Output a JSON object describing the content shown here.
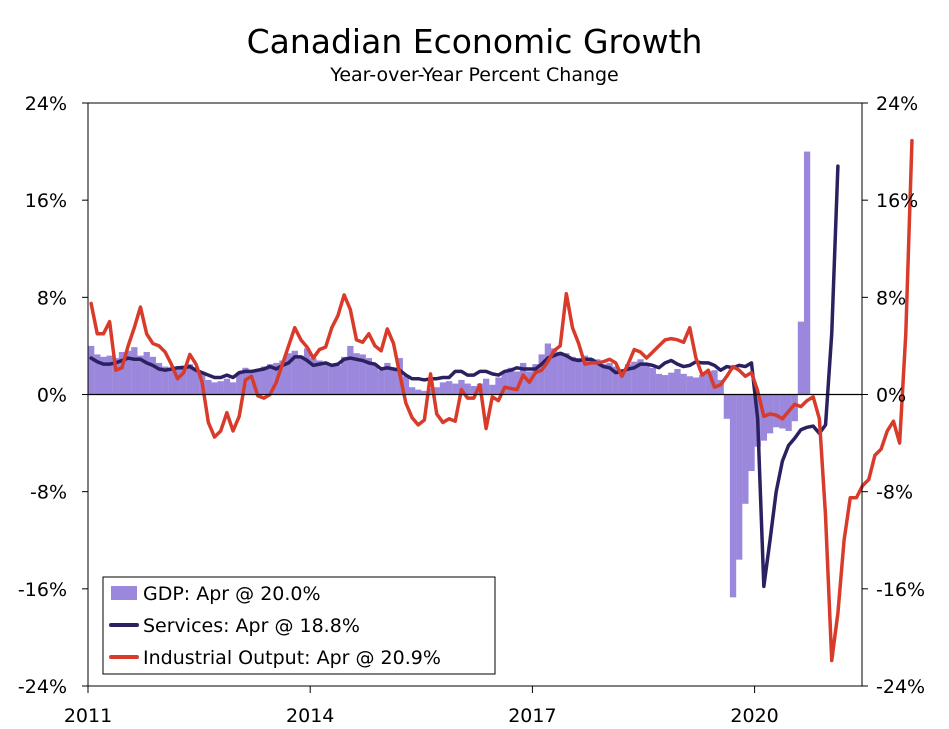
{
  "chart_data": {
    "type": "bar+line",
    "title": "Canadian Economic Growth",
    "subtitle": "Year-over-Year Percent Change",
    "ylim": [
      -24,
      24
    ],
    "y_ticks": [
      24,
      16,
      8,
      0,
      -8,
      -16,
      -24
    ],
    "y_tick_labels": [
      "24%",
      "16%",
      "8%",
      "0%",
      "-8%",
      "-16%",
      "-24%"
    ],
    "x_range": [
      2011.0,
      2021.45
    ],
    "x_ticks": [
      2011,
      2014,
      2017,
      2020
    ],
    "x_tick_labels": [
      "2011",
      "2014",
      "2017",
      "2020"
    ],
    "x_start": 2011.0,
    "x_step": 0.08333,
    "series": [
      {
        "name": "GDP",
        "kind": "bar",
        "color": "#9b87dc",
        "values": [
          4.0,
          3.3,
          3.1,
          3.2,
          3.0,
          3.5,
          3.6,
          3.9,
          3.2,
          3.5,
          3.1,
          2.6,
          2.3,
          2.1,
          2.3,
          2.4,
          2.5,
          2.2,
          1.8,
          1.2,
          1.0,
          1.1,
          1.3,
          1.0,
          1.8,
          2.2,
          2.0,
          2.1,
          2.3,
          2.5,
          2.6,
          2.8,
          3.4,
          3.6,
          3.2,
          3.8,
          3.0,
          2.8,
          2.6,
          2.5,
          2.4,
          3.1,
          4.0,
          3.4,
          3.3,
          3.0,
          2.4,
          2.0,
          2.6,
          2.2,
          3.0,
          1.5,
          0.6,
          0.4,
          0.3,
          0.5,
          0.6,
          1.0,
          1.1,
          0.9,
          1.2,
          0.9,
          0.7,
          0.9,
          1.3,
          0.8,
          1.4,
          1.9,
          2.2,
          1.9,
          2.6,
          1.9,
          2.5,
          3.3,
          4.2,
          3.8,
          3.5,
          3.4,
          3.1,
          3.0,
          3.2,
          3.0,
          2.9,
          2.5,
          2.6,
          2.3,
          2.1,
          2.5,
          2.7,
          2.9,
          2.5,
          2.2,
          1.7,
          1.6,
          1.8,
          2.1,
          1.7,
          1.5,
          1.4,
          1.6,
          1.9,
          2.0,
          1.2,
          -2.0,
          -16.7,
          -13.6,
          -9.0,
          -6.3,
          -4.3,
          -3.8,
          -3.2,
          -2.7,
          -2.8,
          -3.0,
          -2.2,
          6.0,
          20.0
        ]
      },
      {
        "name": "Services",
        "kind": "line",
        "color": "#2b2160",
        "values": [
          3.0,
          2.7,
          2.5,
          2.5,
          2.6,
          2.8,
          3.0,
          2.9,
          2.9,
          2.6,
          2.4,
          2.1,
          2.0,
          2.1,
          2.2,
          2.2,
          2.3,
          2.0,
          1.8,
          1.6,
          1.4,
          1.4,
          1.6,
          1.4,
          1.8,
          1.9,
          1.9,
          2.0,
          2.1,
          2.3,
          2.1,
          2.4,
          2.6,
          3.1,
          3.1,
          2.8,
          2.4,
          2.5,
          2.6,
          2.4,
          2.5,
          2.9,
          3.0,
          2.9,
          2.8,
          2.6,
          2.5,
          2.1,
          2.2,
          2.1,
          2.0,
          1.6,
          1.3,
          1.3,
          1.2,
          1.3,
          1.3,
          1.4,
          1.4,
          1.9,
          1.9,
          1.6,
          1.6,
          1.9,
          1.9,
          1.7,
          1.6,
          1.9,
          2.0,
          2.2,
          2.1,
          2.1,
          2.1,
          2.5,
          3.0,
          3.2,
          3.4,
          3.2,
          2.9,
          2.8,
          2.9,
          2.9,
          2.6,
          2.3,
          2.2,
          1.8,
          1.9,
          2.1,
          2.2,
          2.5,
          2.5,
          2.4,
          2.2,
          2.6,
          2.8,
          2.5,
          2.3,
          2.4,
          2.7,
          2.6,
          2.6,
          2.4,
          2.0,
          2.3,
          2.2,
          2.4,
          2.3,
          2.6,
          -2.0,
          -15.8,
          -12.0,
          -8.0,
          -5.5,
          -4.2,
          -3.6,
          -2.9,
          -2.7,
          -2.6,
          -3.2,
          -2.5,
          5.0,
          18.8
        ]
      },
      {
        "name": "Industrial Output",
        "kind": "line",
        "color": "#d93b2b",
        "values": [
          7.5,
          5.0,
          5.0,
          6.0,
          2.0,
          2.2,
          4.0,
          5.5,
          7.2,
          5.0,
          4.2,
          4.0,
          3.5,
          2.5,
          1.3,
          1.8,
          3.3,
          2.5,
          1.0,
          -2.3,
          -3.5,
          -3.0,
          -1.5,
          -3.0,
          -1.8,
          1.2,
          1.5,
          -0.1,
          -0.3,
          0.0,
          1.0,
          2.5,
          4.0,
          5.5,
          4.5,
          3.9,
          3.0,
          3.7,
          3.9,
          5.5,
          6.5,
          8.2,
          7.0,
          4.5,
          4.3,
          5.0,
          4.0,
          3.6,
          5.4,
          4.2,
          1.7,
          -0.7,
          -1.9,
          -2.5,
          -2.1,
          1.7,
          -1.6,
          -2.3,
          -2.0,
          -2.2,
          0.4,
          -0.3,
          -0.3,
          0.8,
          -2.8,
          -0.2,
          -0.5,
          0.6,
          0.5,
          0.4,
          1.6,
          1.0,
          1.8,
          2.0,
          2.7,
          3.6,
          4.0,
          8.3,
          5.5,
          4.2,
          2.5,
          2.6,
          2.6,
          2.7,
          2.9,
          2.6,
          1.5,
          2.5,
          3.7,
          3.5,
          3.0,
          3.5,
          4.0,
          4.5,
          4.6,
          4.5,
          4.3,
          5.5,
          3.0,
          1.6,
          2.0,
          0.6,
          0.8,
          1.5,
          2.3,
          2.0,
          1.5,
          1.8,
          0.3,
          -1.8,
          -1.6,
          -1.7,
          -2.0,
          -1.4,
          -0.8,
          -1.0,
          -0.5,
          -0.2,
          -2.0,
          -10.0,
          -21.9,
          -18.0,
          -12.0,
          -8.5,
          -8.5,
          -7.5,
          -7.0,
          -5.0,
          -4.5,
          -3.0,
          -2.2,
          -4.0,
          5.0,
          20.9
        ]
      }
    ],
    "legend": {
      "position": "bottom-left",
      "entries": [
        {
          "label": "GDP: Apr @ 20.0%",
          "color": "#9b87dc",
          "kind": "bar"
        },
        {
          "label": "Services: Apr @ 18.8%",
          "color": "#2b2160",
          "kind": "line"
        },
        {
          "label": "Industrial Output: Apr @ 20.9%",
          "color": "#d93b2b",
          "kind": "line"
        }
      ]
    }
  }
}
